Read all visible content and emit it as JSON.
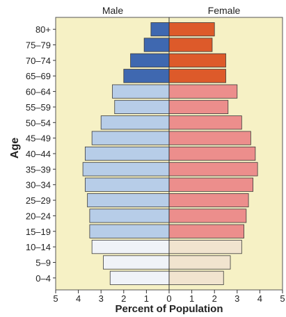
{
  "chart_data": {
    "type": "bar",
    "orientation": "horizontal-population-pyramid",
    "xlabel": "Percent of Population",
    "ylabel": "Age",
    "xlim": [
      -5,
      5
    ],
    "x_ticks": [
      5,
      4,
      3,
      2,
      1,
      0,
      1,
      2,
      3,
      4,
      5
    ],
    "categories": [
      "80+",
      "75–79",
      "70–74",
      "65–69",
      "60–64",
      "55–59",
      "50–54",
      "45–49",
      "40–44",
      "35–39",
      "30–34",
      "25–29",
      "20–24",
      "15–19",
      "10–14",
      "5–9",
      "0–4"
    ],
    "series": [
      {
        "name": "Male",
        "values": [
          0.8,
          1.1,
          1.7,
          2.0,
          2.5,
          2.4,
          3.0,
          3.4,
          3.7,
          3.8,
          3.7,
          3.6,
          3.5,
          3.5,
          3.4,
          2.9,
          2.6
        ]
      },
      {
        "name": "Female",
        "values": [
          2.0,
          1.9,
          2.5,
          2.5,
          3.0,
          2.6,
          3.2,
          3.6,
          3.8,
          3.9,
          3.7,
          3.5,
          3.4,
          3.3,
          3.2,
          2.7,
          2.4
        ]
      }
    ],
    "age_groups": {
      "old": [
        "80+",
        "75–79",
        "70–74",
        "65–69"
      ],
      "working": [
        "60–64",
        "55–59",
        "50–54",
        "45–49",
        "40–44",
        "35–39",
        "30–34",
        "25–29",
        "20–24",
        "15–19"
      ],
      "young": [
        "10–14",
        "5–9",
        "0–4"
      ]
    },
    "colors": {
      "background": "#f6f1c5",
      "male_old": "#3f68b0",
      "male_working": "#b7cde8",
      "male_young": "#f0f3f8",
      "female_old": "#dd5a2a",
      "female_working": "#ec8e8c",
      "female_young": "#f1e4cf",
      "outline": "#3a3a3a"
    },
    "grid": false
  }
}
